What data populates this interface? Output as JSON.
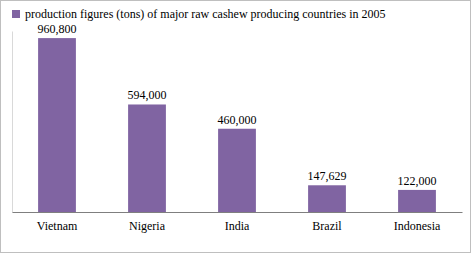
{
  "chart_data": {
    "type": "bar",
    "categories": [
      "Vietnam",
      "Nigeria",
      "India",
      "Brazil",
      "Indonesia"
    ],
    "series": [
      {
        "name": "production figures (tons) of major raw cashew producing countries in 2005",
        "color": "#8064a2",
        "values": [
          960800,
          594000,
          460000,
          147629,
          122000
        ],
        "value_labels": [
          "960,800",
          "594,000",
          "460,000",
          "147,629",
          "122,000"
        ]
      }
    ],
    "ylim": [
      0,
      1000000
    ],
    "data_labels": true,
    "tick_labels": "x",
    "legend": "top-left"
  }
}
